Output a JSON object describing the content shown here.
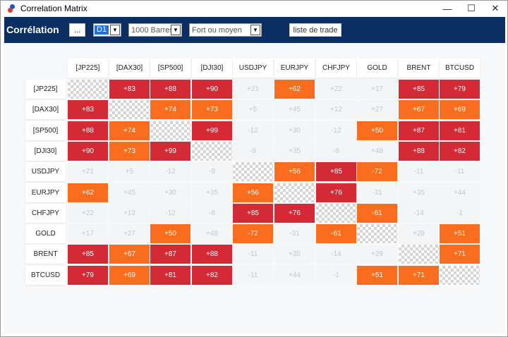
{
  "window": {
    "title": "Correlation Matrix",
    "minimize_glyph": "—",
    "maximize_glyph": "☐",
    "close_glyph": "✕"
  },
  "toolbar": {
    "title": "Corrélation",
    "more_button": "...",
    "timeframe": "D1",
    "bars": "1000 Barres",
    "strength": "Fort ou moyen",
    "trade_list_button": "liste de trade"
  },
  "colors": {
    "strong": "#d42a36",
    "medium": "#fa6d1f",
    "weak_text": "#c4c7cc",
    "toolbar_bg": "#0b2f63"
  },
  "matrix": {
    "symbols": [
      "[JP225]",
      "[DAX30]",
      "[SP500]",
      "[DJI30]",
      "USDJPY",
      "EURJPY",
      "CHFJPY",
      "GOLD",
      "BRENT",
      "BTCUSD"
    ],
    "values": [
      [
        "",
        "+83",
        "+88",
        "+90",
        "+21",
        "+62",
        "+22",
        "+17",
        "+85",
        "+79"
      ],
      [
        "+83",
        "",
        "+74",
        "+73",
        "+5",
        "+45",
        "+12",
        "+27",
        "+67",
        "+69"
      ],
      [
        "+88",
        "+74",
        "",
        "+99",
        "-12",
        "+30",
        "-12",
        "+50",
        "+87",
        "+81"
      ],
      [
        "+90",
        "+73",
        "+99",
        "",
        "-9",
        "+35",
        "-8",
        "+48",
        "+88",
        "+82"
      ],
      [
        "+21",
        "+5",
        "-12",
        "-9",
        "",
        "+56",
        "+85",
        "-72",
        "-11",
        "-11"
      ],
      [
        "+62",
        "+45",
        "+30",
        "+35",
        "+56",
        "",
        "+76",
        "-31",
        "+35",
        "+44"
      ],
      [
        "+22",
        "+12",
        "-12",
        "-8",
        "+85",
        "+76",
        "",
        "-61",
        "-14",
        "-1"
      ],
      [
        "+17",
        "+27",
        "+50",
        "+48",
        "-72",
        "-31",
        "-61",
        "",
        "+29",
        "+51"
      ],
      [
        "+85",
        "+67",
        "+87",
        "+88",
        "-11",
        "+35",
        "-14",
        "+29",
        "",
        "+71"
      ],
      [
        "+79",
        "+69",
        "+81",
        "+82",
        "-11",
        "+44",
        "-1",
        "+51",
        "+71",
        ""
      ]
    ]
  }
}
